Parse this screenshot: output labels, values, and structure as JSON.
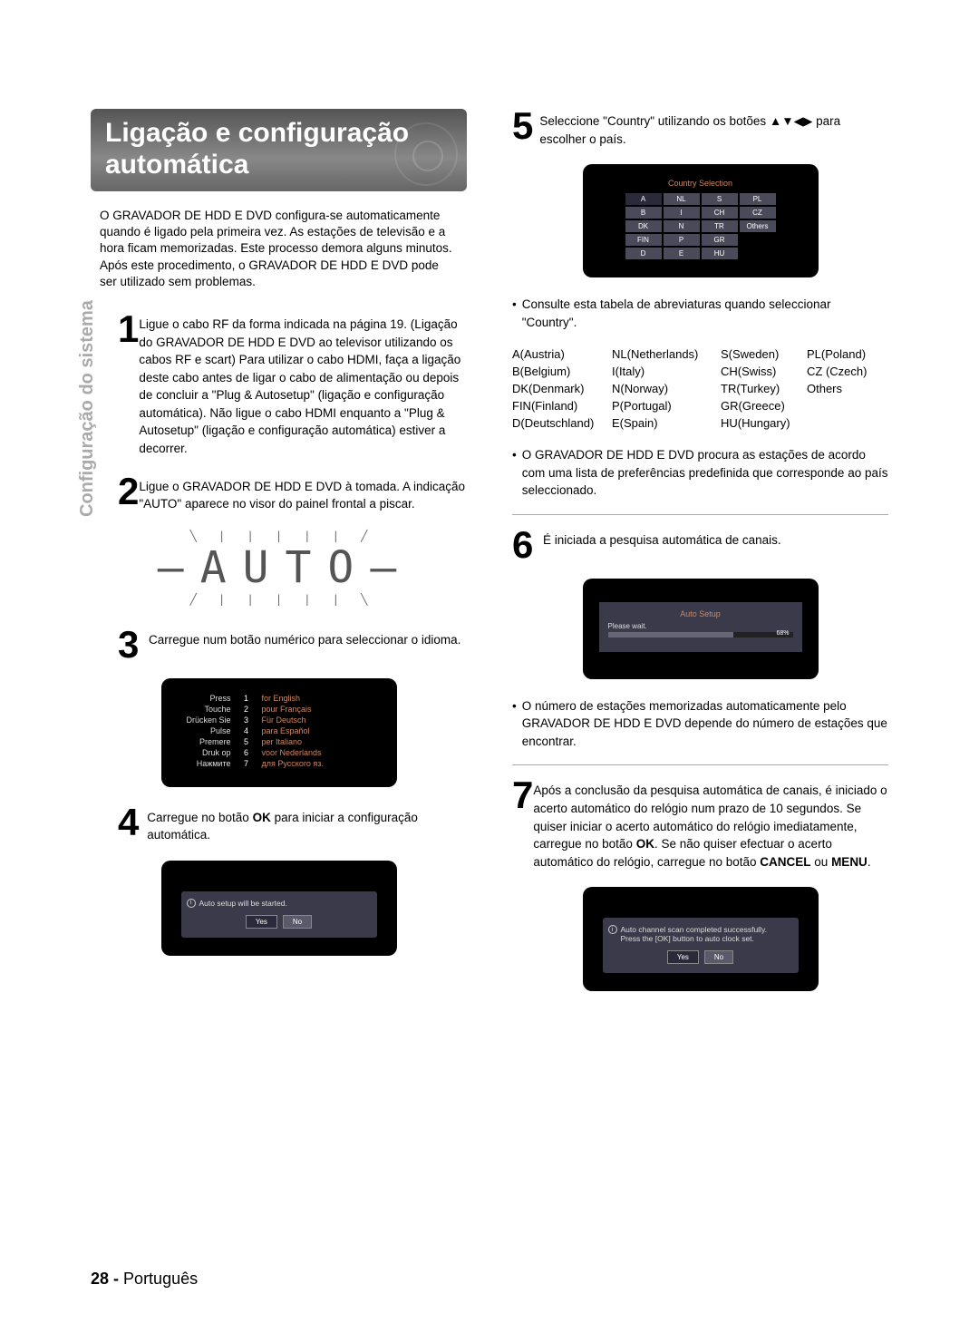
{
  "side_label": "Configuração do sistema",
  "heading": "Ligação e configuração automática",
  "intro": "O GRAVADOR DE HDD E DVD configura-se automaticamente quando é ligado pela primeira vez. As estações de televisão e a hora ficam memorizadas. Este processo demora alguns minutos. Após este procedimento, o GRAVADOR DE HDD E DVD pode ser utilizado sem problemas.",
  "steps": {
    "s1": "Ligue o cabo RF da forma indicada na página 19. (Ligação do GRAVADOR DE HDD E DVD ao televisor utilizando os cabos RF e scart) Para utilizar o cabo HDMI, faça a ligação deste cabo antes de ligar o cabo de alimentação ou depois de concluir a \"Plug & Autosetup\" (ligação e configuração automática). Não ligue o cabo HDMI enquanto a \"Plug & Autosetup\" (ligação e configuração automática) estiver a decorrer.",
    "s2": "Ligue o GRAVADOR DE HDD E DVD à tomada. A indicação \"AUTO\" aparece no visor do painel frontal a piscar.",
    "s3": "Carregue num botão numérico para seleccionar o idioma.",
    "s4_pre": "Carregue no botão ",
    "s4_b": "OK",
    "s4_post": " para iniciar a configuração automática.",
    "s5_pre": "Seleccione \"Country\" utilizando os botões ",
    "s5_post": " para escolher o país.",
    "s6": "É iniciada a pesquisa automática de canais.",
    "s7_pre": "Após a conclusão da pesquisa automática de canais, é iniciado o acerto automático do relógio num prazo de 10 segundos. Se quiser iniciar o acerto automático do relógio imediatamente, carregue no botão ",
    "s7_b1": "OK",
    "s7_mid": ". Se não quiser efectuar o acerto automático do relógio, carregue no botão ",
    "s7_b2": "CANCEL",
    "s7_or": " ou ",
    "s7_b3": "MENU",
    "s7_end": "."
  },
  "auto_display": "AUTO",
  "lang_screen": {
    "rows": [
      {
        "l": "Press",
        "n": "1",
        "r": "for English"
      },
      {
        "l": "Touche",
        "n": "2",
        "r": "pour Français"
      },
      {
        "l": "Drücken Sie",
        "n": "3",
        "r": "Für Deutsch"
      },
      {
        "l": "Pulse",
        "n": "4",
        "r": "para Español"
      },
      {
        "l": "Premere",
        "n": "5",
        "r": "per Italiano"
      },
      {
        "l": "Druk op",
        "n": "6",
        "r": "voor Nederlands"
      },
      {
        "l": "Нажмите",
        "n": "7",
        "r": "для Русского яз."
      }
    ]
  },
  "confirm_screen": {
    "msg": "Auto setup will be started.",
    "yes": "Yes",
    "no": "No"
  },
  "country_screen": {
    "title": "Country Selection",
    "cells": [
      "A",
      "NL",
      "S",
      "PL",
      "B",
      "I",
      "CH",
      "CZ",
      "DK",
      "N",
      "TR",
      "Others",
      "FIN",
      "P",
      "GR",
      "",
      "D",
      "E",
      "HU",
      ""
    ]
  },
  "abbr_note": "Consulte esta tabela de abreviaturas quando seleccionar \"Country\".",
  "abbr_table": [
    [
      "A(Austria)",
      "NL(Netherlands)",
      "S(Sweden)",
      "PL(Poland)"
    ],
    [
      "B(Belgium)",
      "I(Italy)",
      "CH(Swiss)",
      "CZ (Czech)"
    ],
    [
      "DK(Denmark)",
      "N(Norway)",
      "TR(Turkey)",
      "Others"
    ],
    [
      "FIN(Finland)",
      "P(Portugal)",
      "GR(Greece)",
      ""
    ],
    [
      "D(Deutschland)",
      "E(Spain)",
      "HU(Hungary)",
      ""
    ]
  ],
  "country_note": "O GRAVADOR DE HDD E DVD procura as estações de acordo com uma lista de preferências predefinida que corresponde ao país seleccionado.",
  "autosetup_screen": {
    "title": "Auto Setup",
    "wait": "Please wait.",
    "pct": "68%",
    "pct_value": 68
  },
  "memo_note": "O número de estações memorizadas automaticamente pelo GRAVADOR DE HDD E DVD depende do número de estações que encontrar.",
  "final_screen": {
    "msg1": "Auto channel scan completed successfully.",
    "msg2": "Press the [OK] button to auto clock set.",
    "yes": "Yes",
    "no": "No"
  },
  "arrows": "▲▼◀▶",
  "footer_num": "28 -",
  "footer_lang": "Português"
}
